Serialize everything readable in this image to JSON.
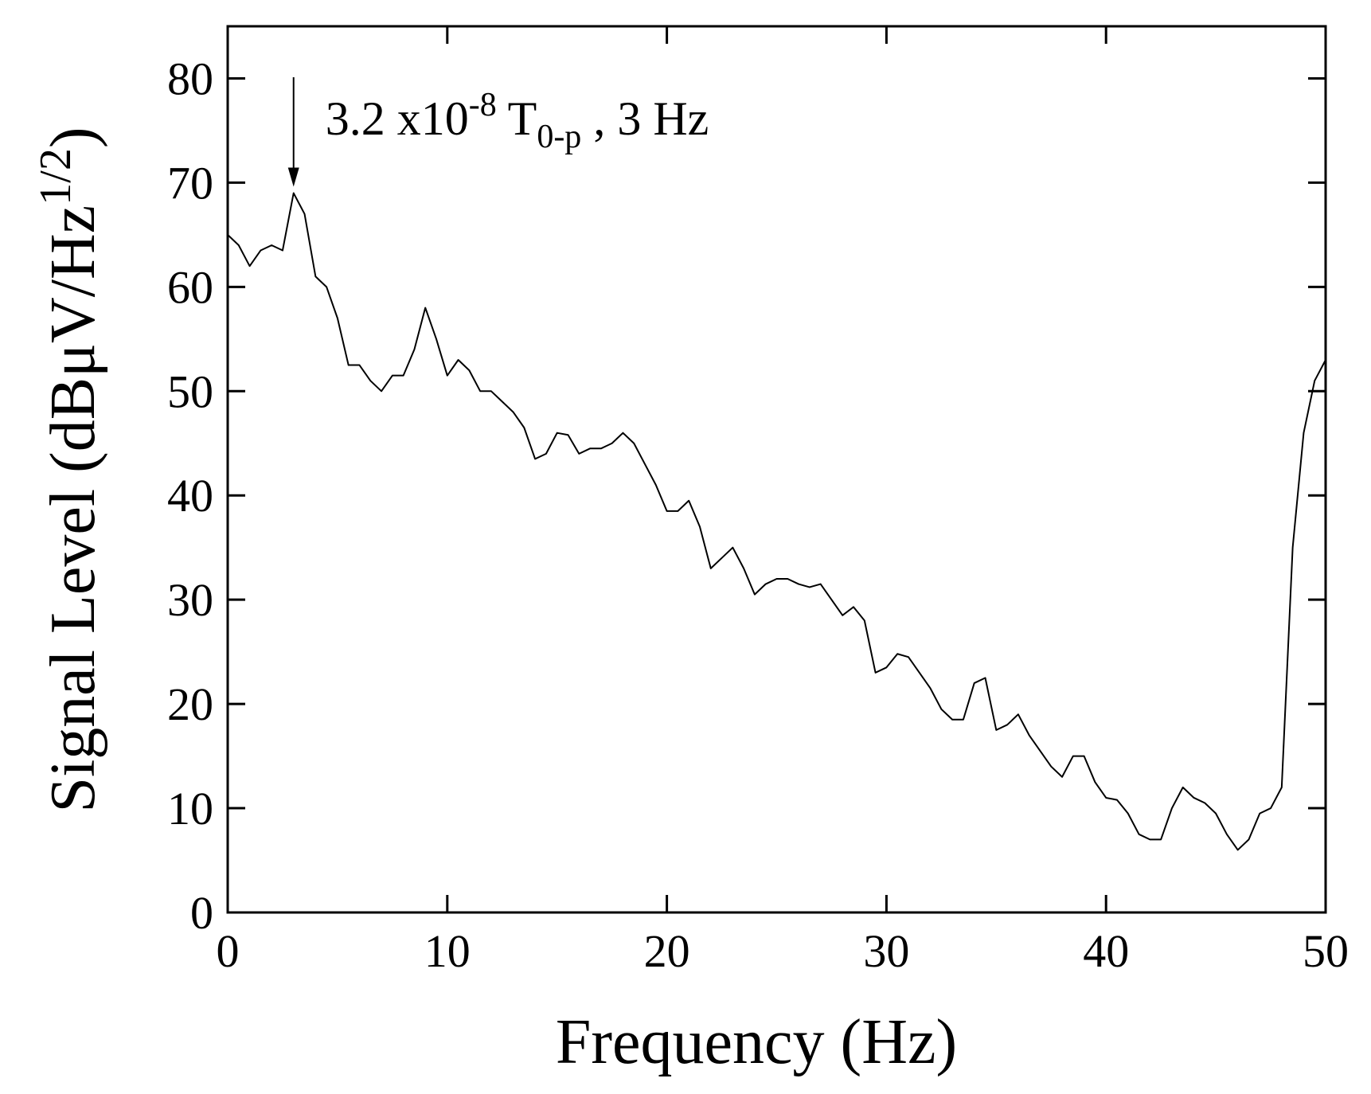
{
  "chart_data": {
    "type": "line",
    "x_label": "Frequency (Hz)",
    "y_label": {
      "main": "Signal Level (dBμV/Hz",
      "sup": "1/2",
      "end": ")"
    },
    "annotation": {
      "x": 3,
      "y": 69,
      "base": "3.2 x10",
      "sup": "-8",
      "mid": " T",
      "sub": "0-p",
      "end": " , 3 Hz"
    },
    "x": [
      0,
      0.5,
      1,
      1.5,
      2,
      2.5,
      3,
      3.5,
      4,
      4.5,
      5,
      5.5,
      6,
      6.5,
      7,
      7.5,
      8,
      8.5,
      9,
      9.5,
      10,
      10.5,
      11,
      11.5,
      12,
      12.5,
      13,
      13.5,
      14,
      14.5,
      15,
      15.5,
      16,
      16.5,
      17,
      17.5,
      18,
      18.5,
      19,
      19.5,
      20,
      20.5,
      21,
      21.5,
      22,
      22.5,
      23,
      23.5,
      24,
      24.5,
      25,
      25.5,
      26,
      26.5,
      27,
      27.5,
      28,
      28.5,
      29,
      29.5,
      30,
      30.5,
      31,
      31.5,
      32,
      32.5,
      33,
      33.5,
      34,
      34.5,
      35,
      35.5,
      36,
      36.5,
      37,
      37.5,
      38,
      38.5,
      39,
      39.5,
      40,
      40.5,
      41,
      41.5,
      42,
      42.5,
      43,
      43.5,
      44,
      44.5,
      45,
      45.5,
      46,
      46.5,
      47,
      47.5,
      48,
      48.5,
      49,
      49.5,
      50
    ],
    "series": [
      {
        "color": "#000000",
        "values": [
          65,
          64,
          62,
          63.5,
          64,
          63.5,
          69,
          67,
          61,
          60,
          57,
          52.5,
          52.5,
          51,
          50,
          51.5,
          51.5,
          54,
          58,
          55,
          51.5,
          53,
          52,
          50,
          50,
          49,
          48,
          46.5,
          43.5,
          44,
          46,
          45.8,
          44,
          44.5,
          44.5,
          45,
          46,
          45,
          43,
          41,
          38.5,
          38.5,
          39.5,
          37,
          33,
          34,
          35,
          33,
          30.5,
          31.5,
          32,
          32,
          31.5,
          31.2,
          31.5,
          30,
          28.5,
          29.3,
          28,
          23,
          23.5,
          24.8,
          24.5,
          23,
          21.5,
          19.5,
          18.5,
          18.5,
          22,
          22.5,
          17.5,
          18,
          19,
          17,
          15.5,
          14,
          13,
          15,
          15,
          12.5,
          11,
          10.8,
          9.5,
          7.5,
          7,
          7,
          10,
          12,
          11,
          10.5,
          9.5,
          7.5,
          6,
          7,
          9.5,
          10,
          12,
          35,
          46,
          51,
          53
        ]
      }
    ],
    "xlim": [
      0,
      50
    ],
    "xticks": [
      0,
      10,
      20,
      30,
      40,
      50
    ],
    "ylim": [
      0,
      85
    ],
    "yticks": [
      0,
      10,
      20,
      30,
      40,
      50,
      60,
      70,
      80
    ]
  }
}
